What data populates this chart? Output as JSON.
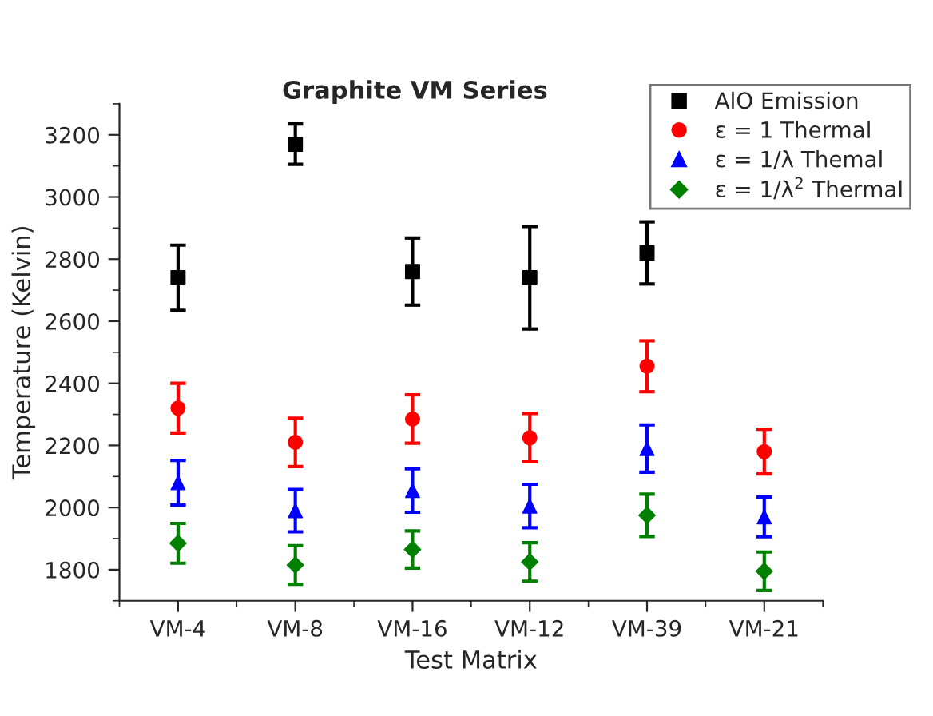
{
  "chart_data": {
    "type": "scatter",
    "title": "Graphite VM Series",
    "xlabel": "Test Matrix",
    "ylabel": "Temperature (Kelvin)",
    "categories": [
      "VM-4",
      "VM-8",
      "VM-16",
      "VM-12",
      "VM-39",
      "VM-21"
    ],
    "series": [
      {
        "name": "AlO Emission",
        "color": "#000000",
        "marker": "square",
        "values": [
          2740,
          3170,
          2760,
          2740,
          2820,
          null
        ],
        "errors": [
          105,
          65,
          108,
          165,
          100,
          null
        ]
      },
      {
        "name": "ε = 1 Thermal",
        "color": "#ff0000",
        "marker": "circle",
        "values": [
          2320,
          2210,
          2285,
          2225,
          2455,
          2180
        ],
        "errors": [
          80,
          78,
          78,
          78,
          82,
          72
        ]
      },
      {
        "name": "ε = 1/λ Themal",
        "color": "#0000ff",
        "marker": "triangle",
        "values": [
          2080,
          1990,
          2055,
          2005,
          2190,
          1970
        ],
        "errors": [
          72,
          68,
          70,
          70,
          76,
          64
        ]
      },
      {
        "name": "ε = 1/λ$^{2}$ Thermal",
        "color": "#008000",
        "marker": "diamond",
        "values": [
          1885,
          1815,
          1865,
          1825,
          1975,
          1795
        ],
        "errors": [
          64,
          62,
          60,
          62,
          68,
          62
        ]
      }
    ],
    "ylim": [
      1700,
      3300
    ],
    "yticks": [
      1800,
      2000,
      2200,
      2400,
      2600,
      2800,
      3000,
      3200
    ],
    "grid": false,
    "legend": "top right"
  }
}
